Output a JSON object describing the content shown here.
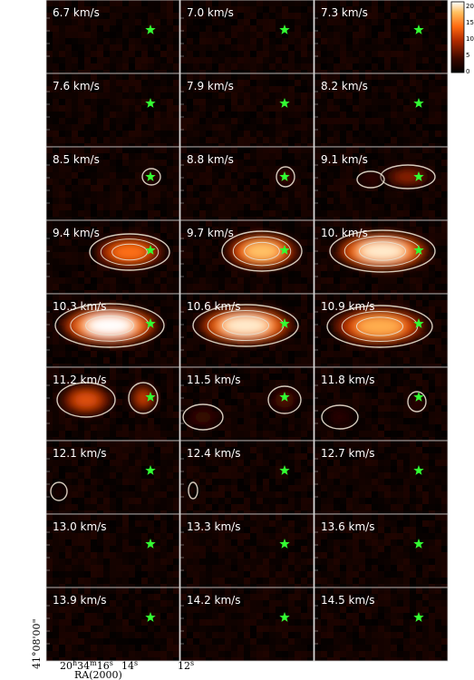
{
  "chart_data": {
    "type": "heatmap",
    "description_unit": "km/s",
    "panels": [
      {
        "label": "6.7 km/s",
        "velocity": 6.7,
        "peak": 3,
        "blobs": []
      },
      {
        "label": "7.0 km/s",
        "velocity": 7.0,
        "peak": 3,
        "blobs": []
      },
      {
        "label": "7.3 km/s",
        "velocity": 7.3,
        "peak": 3,
        "blobs": []
      },
      {
        "label": "7.6 km/s",
        "velocity": 7.6,
        "peak": 3,
        "blobs": []
      },
      {
        "label": "7.9 km/s",
        "velocity": 7.9,
        "peak": 3,
        "blobs": []
      },
      {
        "label": "8.2 km/s",
        "velocity": 8.2,
        "peak": 4,
        "blobs": []
      },
      {
        "label": "8.5 km/s",
        "velocity": 8.5,
        "peak": 5,
        "blobs": []
      },
      {
        "label": "8.8 km/s",
        "velocity": 8.8,
        "peak": 6,
        "blobs": []
      },
      {
        "label": "9.1 km/s",
        "velocity": 9.1,
        "peak": 8,
        "blobs": []
      },
      {
        "label": "9.4 km/s",
        "velocity": 9.4,
        "peak": 14,
        "blobs": []
      },
      {
        "label": "9.7 km/s",
        "velocity": 9.7,
        "peak": 18,
        "blobs": []
      },
      {
        "label": "10. km/s",
        "velocity": 10.0,
        "peak": 20,
        "blobs": []
      },
      {
        "label": "10.3 km/s",
        "velocity": 10.3,
        "peak": 21,
        "blobs": []
      },
      {
        "label": "10.6 km/s",
        "velocity": 10.6,
        "peak": 20,
        "blobs": []
      },
      {
        "label": "10.9 km/s",
        "velocity": 10.9,
        "peak": 17,
        "blobs": []
      },
      {
        "label": "11.2 km/s",
        "velocity": 11.2,
        "peak": 12,
        "blobs": []
      },
      {
        "label": "11.5 km/s",
        "velocity": 11.5,
        "peak": 6,
        "blobs": []
      },
      {
        "label": "11.8 km/s",
        "velocity": 11.8,
        "peak": 5,
        "blobs": []
      },
      {
        "label": "12.1 km/s",
        "velocity": 12.1,
        "peak": 4,
        "blobs": []
      },
      {
        "label": "12.4 km/s",
        "velocity": 12.4,
        "peak": 3,
        "blobs": []
      },
      {
        "label": "12.7 km/s",
        "velocity": 12.7,
        "peak": 3,
        "blobs": []
      },
      {
        "label": "13.0 km/s",
        "velocity": 13.0,
        "peak": 3,
        "blobs": []
      },
      {
        "label": "13.3 km/s",
        "velocity": 13.3,
        "peak": 3,
        "blobs": []
      },
      {
        "label": "13.6 km/s",
        "velocity": 13.6,
        "peak": 3,
        "blobs": []
      },
      {
        "label": "13.9 km/s",
        "velocity": 13.9,
        "peak": 3,
        "blobs": []
      },
      {
        "label": "14.2 km/s",
        "velocity": 14.2,
        "peak": 3,
        "blobs": []
      },
      {
        "label": "14.5 km/s",
        "velocity": 14.5,
        "peak": 3,
        "blobs": []
      }
    ],
    "colorbar": {
      "ticks": [
        "20",
        "15",
        "10",
        "5",
        "0"
      ],
      "range": [
        0,
        21
      ]
    },
    "ylabel": "41°08'00\"",
    "xlabel": "RA(2000)",
    "xticks": [
      {
        "h": "20",
        "m": "34",
        "s": "16"
      },
      {
        "s": "14"
      },
      {
        "s": "12"
      }
    ],
    "star_color": "#33ff33",
    "contour_color": "#e8e0d0",
    "grid": false
  }
}
